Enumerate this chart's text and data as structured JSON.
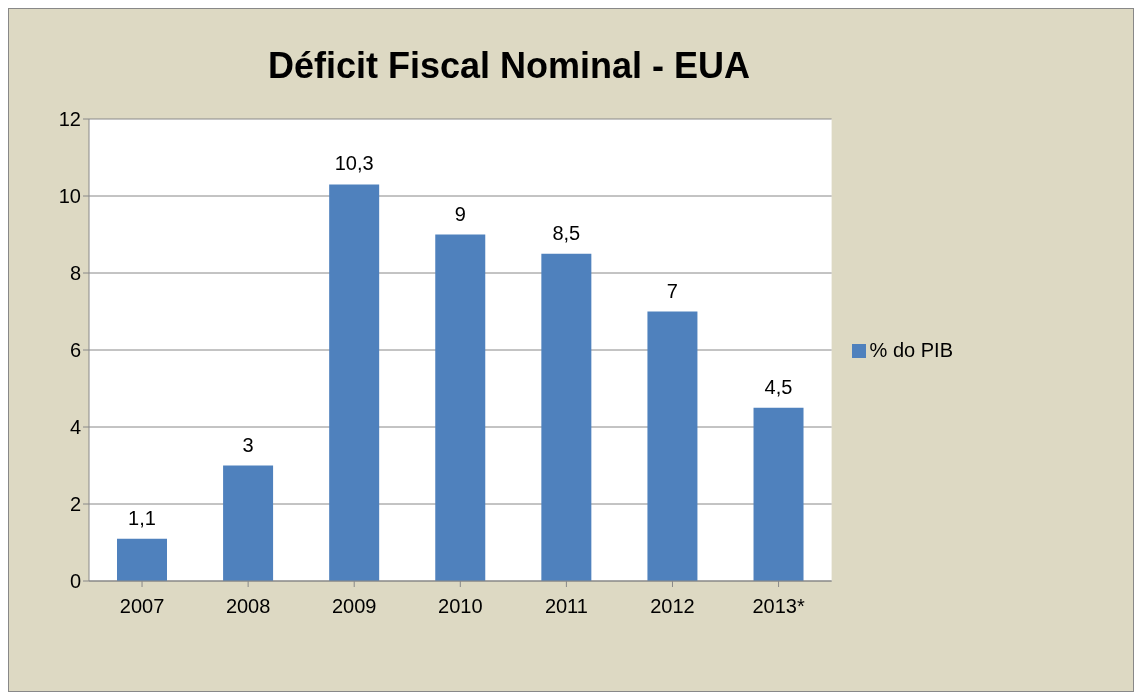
{
  "chart_data": {
    "type": "bar",
    "title": "Déficit Fiscal Nominal - EUA",
    "categories": [
      "2007",
      "2008",
      "2009",
      "2010",
      "2011",
      "2012",
      "2013*"
    ],
    "series": [
      {
        "name": "% do PIB",
        "color": "#4f81bd",
        "values": [
          1.1,
          3,
          10.3,
          9,
          8.5,
          7,
          4.5
        ],
        "value_labels": [
          "1,1",
          "3",
          "10,3",
          "9",
          "8,5",
          "7",
          "4,5"
        ]
      }
    ],
    "ylim": [
      0,
      12
    ],
    "yticks": [
      0,
      2,
      4,
      6,
      8,
      10,
      12
    ],
    "grid": "y",
    "legend": "right"
  }
}
